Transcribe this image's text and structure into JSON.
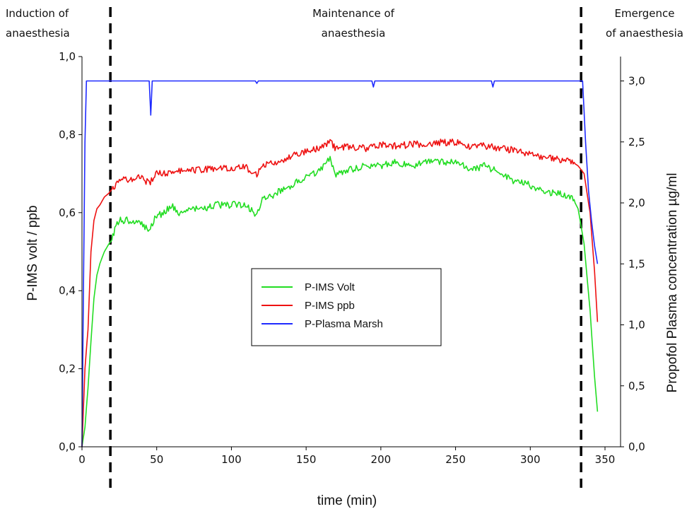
{
  "phase_labels": {
    "induction_line1": "Induction of",
    "induction_line2": "anaesthesia",
    "maintenance_line1": "Maintenance of",
    "maintenance_line2": "anaesthesia",
    "emergence_line1": "Emergence",
    "emergence_line2": "of anaesthesia"
  },
  "chart_data": {
    "type": "line",
    "xlabel": "time (min)",
    "ylabel": "P-IMS volt / ppb",
    "y2label": "Propofol Plasma concentration µg/ml",
    "xlim": [
      0,
      350
    ],
    "ylim": [
      0,
      1.0
    ],
    "y2lim": [
      0,
      3.2
    ],
    "x_ticks": [
      "0",
      "50",
      "100",
      "150",
      "200",
      "250",
      "300",
      "350"
    ],
    "y_ticks": [
      "0,0",
      "0,2",
      "0,4",
      "0,6",
      "0,8",
      "1,0"
    ],
    "y2_ticks": [
      "0,0",
      "0,5",
      "1,0",
      "1,5",
      "2,0",
      "2,5",
      "3,0"
    ],
    "phase_boundaries_x": [
      19,
      334
    ],
    "legend": {
      "placement": "center",
      "entries": [
        "P-IMS Volt",
        "P-IMS ppb",
        "P-Plasma Marsh"
      ]
    },
    "series": [
      {
        "name": "P-IMS Volt",
        "axis": "left",
        "color": "#22dd22",
        "x": [
          0,
          2,
          4,
          6,
          8,
          10,
          12,
          15,
          18,
          20,
          22,
          25,
          30,
          35,
          40,
          45,
          48,
          50,
          55,
          60,
          65,
          70,
          80,
          90,
          100,
          110,
          117,
          120,
          130,
          140,
          150,
          160,
          166,
          170,
          180,
          190,
          200,
          210,
          220,
          230,
          240,
          250,
          260,
          270,
          280,
          290,
          300,
          310,
          320,
          328,
          332,
          336,
          340,
          343,
          345
        ],
        "y": [
          0.0,
          0.05,
          0.15,
          0.27,
          0.38,
          0.44,
          0.47,
          0.5,
          0.52,
          0.53,
          0.56,
          0.58,
          0.58,
          0.57,
          0.575,
          0.55,
          0.58,
          0.59,
          0.6,
          0.62,
          0.6,
          0.61,
          0.61,
          0.62,
          0.62,
          0.62,
          0.59,
          0.63,
          0.65,
          0.67,
          0.69,
          0.71,
          0.74,
          0.7,
          0.71,
          0.72,
          0.72,
          0.73,
          0.72,
          0.73,
          0.73,
          0.73,
          0.71,
          0.72,
          0.7,
          0.68,
          0.67,
          0.65,
          0.65,
          0.64,
          0.61,
          0.52,
          0.35,
          0.18,
          0.09
        ]
      },
      {
        "name": "P-IMS ppb",
        "axis": "left",
        "color": "#ee1111",
        "x": [
          0,
          2,
          4,
          6,
          8,
          10,
          12,
          15,
          18,
          20,
          22,
          25,
          30,
          35,
          40,
          45,
          48,
          50,
          55,
          60,
          65,
          70,
          80,
          90,
          100,
          110,
          117,
          120,
          130,
          140,
          150,
          160,
          166,
          170,
          180,
          190,
          200,
          210,
          220,
          230,
          240,
          250,
          260,
          270,
          280,
          290,
          300,
          310,
          320,
          328,
          332,
          336,
          340,
          343,
          345
        ],
        "y": [
          0.0,
          0.2,
          0.3,
          0.5,
          0.58,
          0.61,
          0.62,
          0.64,
          0.65,
          0.66,
          0.67,
          0.69,
          0.685,
          0.69,
          0.69,
          0.675,
          0.69,
          0.7,
          0.7,
          0.7,
          0.71,
          0.705,
          0.71,
          0.715,
          0.715,
          0.715,
          0.7,
          0.72,
          0.73,
          0.745,
          0.755,
          0.765,
          0.78,
          0.765,
          0.77,
          0.765,
          0.775,
          0.77,
          0.775,
          0.775,
          0.78,
          0.78,
          0.77,
          0.77,
          0.765,
          0.76,
          0.75,
          0.74,
          0.735,
          0.73,
          0.72,
          0.7,
          0.6,
          0.45,
          0.32
        ]
      },
      {
        "name": "P-Plasma Marsh",
        "axis": "right",
        "color": "#1f2bff",
        "x": [
          0,
          1,
          2,
          3,
          45,
          46,
          47,
          116,
          117,
          118,
          194,
          195,
          196,
          274,
          275,
          276,
          335,
          337,
          339,
          341,
          343,
          345
        ],
        "y": [
          0.0,
          1.3,
          2.5,
          3.0,
          3.0,
          2.72,
          3.0,
          3.0,
          2.98,
          3.0,
          3.0,
          2.95,
          3.0,
          3.0,
          2.95,
          3.0,
          3.0,
          2.5,
          2.1,
          1.85,
          1.65,
          1.5
        ]
      }
    ]
  }
}
